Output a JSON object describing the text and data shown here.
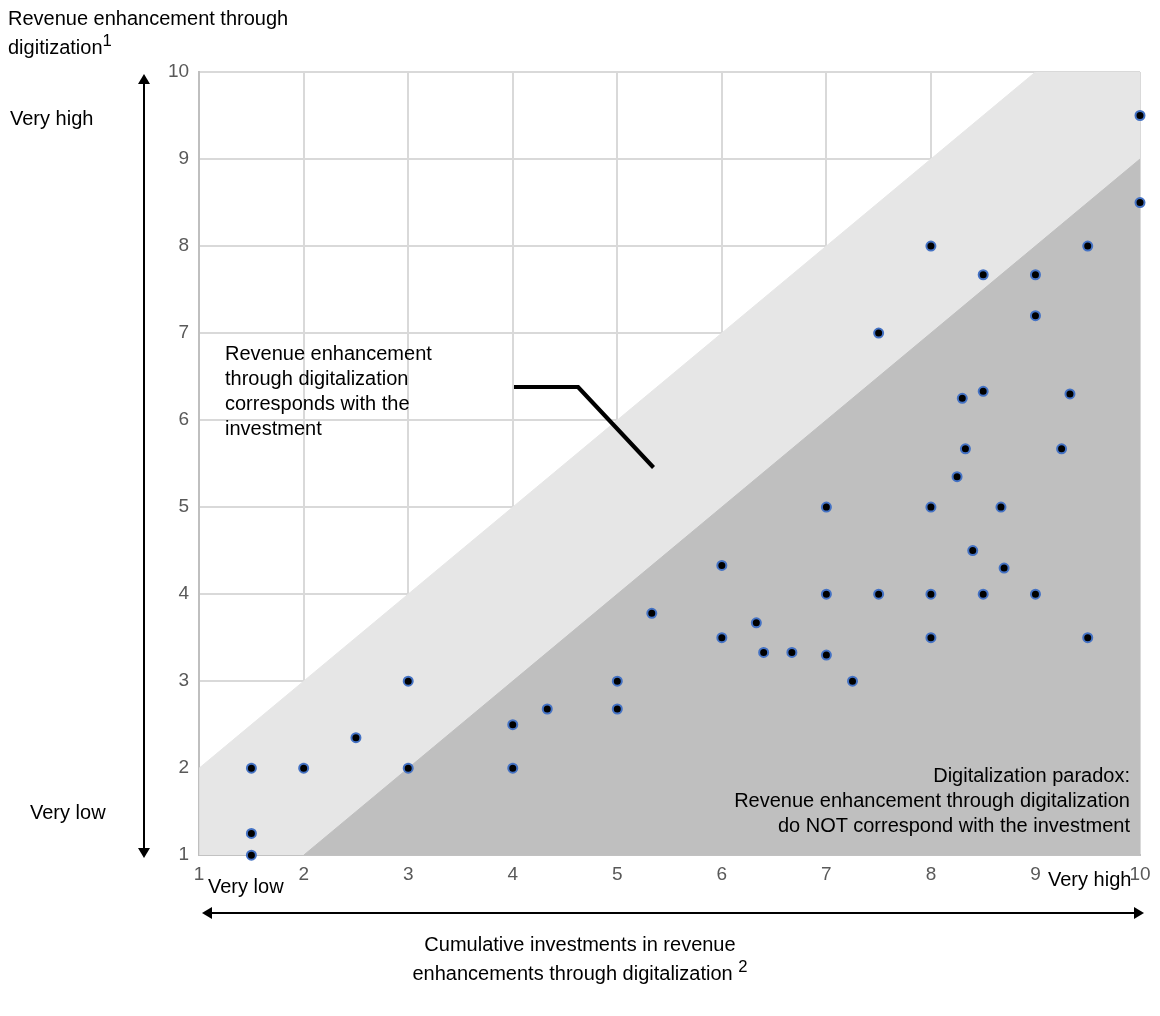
{
  "chart_data": {
    "type": "scatter",
    "xlabel": "Cumulative investments in revenue enhancements through digitalization $^{2}$",
    "ylabel": "Revenue enhancement through digitization$^{1}$",
    "xlim": [
      1,
      10
    ],
    "ylim": [
      1,
      10
    ],
    "xticks": [
      1,
      2,
      3,
      4,
      5,
      6,
      7,
      8,
      9,
      10
    ],
    "yticks": [
      1,
      2,
      3,
      4,
      5,
      6,
      7,
      8,
      9,
      10
    ],
    "grid": true,
    "legend": false,
    "series": [
      {
        "type": "area",
        "marker": "none",
        "color": "#e6e6e6",
        "x": [
          1,
          2,
          9,
          10
        ],
        "values": [
          2,
          3,
          10,
          10
        ]
      },
      {
        "type": "area",
        "marker": "none",
        "color": "#bfbfbf",
        "x": [
          2,
          10
        ],
        "values": [
          1,
          9
        ]
      },
      {
        "type": "scatter",
        "marker": "circle",
        "color": "#000000",
        "x": [
          1.5,
          1.5,
          1.5,
          2,
          2.5,
          3,
          3,
          4,
          4,
          4.33,
          5,
          5,
          5.33,
          6,
          6,
          6.33,
          6.4,
          6.67,
          7,
          7,
          7,
          7.25,
          7.5,
          7.5,
          8,
          8,
          8,
          8,
          8.25,
          8.3,
          8.33,
          8.4,
          8.5,
          8.5,
          8.5,
          8.67,
          8.7,
          9,
          9,
          9,
          9.25,
          9.33,
          9.5,
          9.5,
          10,
          10
        ],
        "values": [
          2,
          1.25,
          1,
          2,
          2.35,
          3,
          2,
          2.5,
          2,
          2.68,
          3,
          2.68,
          3.78,
          4.33,
          3.5,
          3.67,
          3.33,
          3.33,
          5,
          4,
          3.3,
          3,
          7,
          4,
          8,
          5,
          4,
          3.5,
          5.35,
          6.25,
          5.67,
          4.5,
          7.67,
          6.33,
          4,
          5,
          4.3,
          7.67,
          7.2,
          4,
          5.67,
          6.3,
          8,
          3.5,
          9.5,
          8.5
        ]
      }
    ],
    "annotations": [
      "Very high",
      "Very low",
      "Very low",
      "Very high",
      "Revenue enhancement\nthrough digitalization\ncorresponds with the\ninvestment",
      "Digitalization paradox:\nRevenue enhancement through digitalization\ndo NOT correspond with the investment"
    ]
  }
}
